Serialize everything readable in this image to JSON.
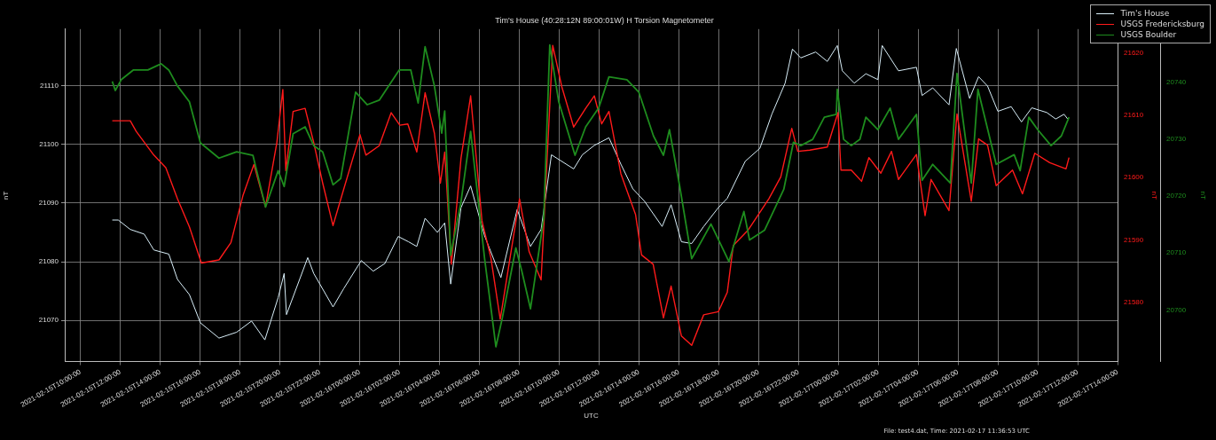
{
  "chart_data": {
    "type": "line",
    "title": "Tim's House (40:28:12N 89:00:01W) H Torsion Magnetometer",
    "xlabel": "UTC",
    "ylabel": "nT",
    "y2label": "nT",
    "y3label": "nT",
    "annotations": [
      "File: test4.dat, Time: 2021-02-17 11:36:53 UTC"
    ],
    "xlim": [
      "2021-02-15T09:13",
      "2021-02-17T14:00"
    ],
    "xticks": [
      {
        "value": "2021-02-15T10:00",
        "label": "2021-02-15T10:00:00"
      },
      {
        "value": "2021-02-15T12:00",
        "label": "2021-02-15T12:00:00"
      },
      {
        "value": "2021-02-15T14:00",
        "label": "2021-02-15T14:00:00"
      },
      {
        "value": "2021-02-15T16:00",
        "label": "2021-02-15T16:00:00"
      },
      {
        "value": "2021-02-15T18:00",
        "label": "2021-02-15T18:00:00"
      },
      {
        "value": "2021-02-15T20:00",
        "label": "2021-02-15T20:00:00"
      },
      {
        "value": "2021-02-15T22:00",
        "label": "2021-02-15T22:00:00"
      },
      {
        "value": "2021-02-16T00:00",
        "label": "2021-02-16T00:00:00"
      },
      {
        "value": "2021-02-16T02:00",
        "label": "2021-02-16T02:00:00"
      },
      {
        "value": "2021-02-16T04:00",
        "label": "2021-02-16T04:00:00"
      },
      {
        "value": "2021-02-16T06:00",
        "label": "2021-02-16T06:00:00"
      },
      {
        "value": "2021-02-16T08:00",
        "label": "2021-02-16T08:00:00"
      },
      {
        "value": "2021-02-16T10:00",
        "label": "2021-02-16T10:00:00"
      },
      {
        "value": "2021-02-16T12:00",
        "label": "2021-02-16T12:00:00"
      },
      {
        "value": "2021-02-16T14:00",
        "label": "2021-02-16T14:00:00"
      },
      {
        "value": "2021-02-16T16:00",
        "label": "2021-02-16T16:00:00"
      },
      {
        "value": "2021-02-16T18:00",
        "label": "2021-02-16T18:00:00"
      },
      {
        "value": "2021-02-16T20:00",
        "label": "2021-02-16T20:00:00"
      },
      {
        "value": "2021-02-16T22:00",
        "label": "2021-02-16T22:00:00"
      },
      {
        "value": "2021-02-17T00:00",
        "label": "2021-02-17T00:00:00"
      },
      {
        "value": "2021-02-17T02:00",
        "label": "2021-02-17T02:00:00"
      },
      {
        "value": "2021-02-17T04:00",
        "label": "2021-02-17T04:00:00"
      },
      {
        "value": "2021-02-17T06:00",
        "label": "2021-02-17T06:00:00"
      },
      {
        "value": "2021-02-17T08:00",
        "label": "2021-02-17T08:00:00"
      },
      {
        "value": "2021-02-17T10:00",
        "label": "2021-02-17T10:00:00"
      },
      {
        "value": "2021-02-17T12:00",
        "label": "2021-02-17T12:00:00"
      },
      {
        "value": "2021-02-17T14:00",
        "label": "2021-02-17T14:00:00"
      }
    ],
    "ylim": [
      21063,
      21119.6
    ],
    "yticks": [
      21070,
      21080,
      21090,
      21100,
      21110
    ],
    "y2lim": [
      21570.5,
      21623.8
    ],
    "y2ticks": [
      21580,
      21590,
      21600,
      21610,
      21620
    ],
    "y3lim": [
      20690.9,
      20749.4
    ],
    "y3ticks": [
      20700,
      20710,
      20720,
      20730,
      20740
    ],
    "grid": true,
    "legend": "top right",
    "series": [
      {
        "name": "Tim's House",
        "color": "#d8eef8",
        "x": [
          "2021-02-15T11:36",
          "2021-02-15T11:54",
          "2021-02-15T12:30",
          "2021-02-15T13:12",
          "2021-02-15T13:41",
          "2021-02-15T14:26",
          "2021-02-15T14:52",
          "2021-02-15T15:28",
          "2021-02-15T16:01",
          "2021-02-15T16:57",
          "2021-02-15T17:50",
          "2021-02-15T18:35",
          "2021-02-15T19:15",
          "2021-02-15T19:55",
          "2021-02-15T20:13",
          "2021-02-15T20:20",
          "2021-02-15T21:24",
          "2021-02-15T21:42",
          "2021-02-15T22:40",
          "2021-02-15T23:12",
          "2021-02-16T00:05",
          "2021-02-16T00:41",
          "2021-02-16T01:16",
          "2021-02-16T01:56",
          "2021-02-16T02:27",
          "2021-02-16T02:52",
          "2021-02-16T03:17",
          "2021-02-16T03:54",
          "2021-02-16T04:16",
          "2021-02-16T04:34",
          "2021-02-16T05:05",
          "2021-02-16T05:34",
          "2021-02-16T06:16",
          "2021-02-16T07:05",
          "2021-02-16T07:54",
          "2021-02-16T08:34",
          "2021-02-16T09:06",
          "2021-02-16T09:37",
          "2021-02-16T10:44",
          "2021-02-16T11:10",
          "2021-02-16T11:46",
          "2021-02-16T12:30",
          "2021-02-16T13:06",
          "2021-02-16T13:42",
          "2021-02-16T14:17",
          "2021-02-16T15:10",
          "2021-02-16T15:37",
          "2021-02-16T16:08",
          "2021-02-16T16:39",
          "2021-02-16T17:15",
          "2021-02-16T17:59",
          "2021-02-16T18:26",
          "2021-02-16T19:20",
          "2021-02-16T20:04",
          "2021-02-16T20:40",
          "2021-02-16T21:20",
          "2021-02-16T21:42",
          "2021-02-16T22:07",
          "2021-02-16T22:52",
          "2021-02-16T23:27",
          "2021-02-16T23:57",
          "2021-02-17T00:12",
          "2021-02-17T00:48",
          "2021-02-17T01:23",
          "2021-02-17T01:59",
          "2021-02-17T02:12",
          "2021-02-17T03:01",
          "2021-02-17T03:55",
          "2021-02-17T04:12",
          "2021-02-17T04:44",
          "2021-02-17T05:33",
          "2021-02-17T05:55",
          "2021-02-17T06:35",
          "2021-02-17T07:02",
          "2021-02-17T07:29",
          "2021-02-17T08:00",
          "2021-02-17T08:40",
          "2021-02-17T09:11",
          "2021-02-17T09:42",
          "2021-02-17T10:27",
          "2021-02-17T10:54",
          "2021-02-17T11:19",
          "2021-02-17T11:30"
        ],
        "values": [
          21087.1,
          21087.1,
          21085.5,
          21084.7,
          21082.0,
          21081.3,
          21077.0,
          21074.4,
          21069.6,
          21067.0,
          21068.0,
          21069.9,
          21066.7,
          21073.9,
          21078.0,
          21071.0,
          21080.7,
          21078.0,
          21072.3,
          21075.4,
          21080.2,
          21078.4,
          21079.7,
          21084.3,
          21083.4,
          21082.6,
          21087.4,
          21085.0,
          21086.6,
          21076.2,
          21089.2,
          21092.9,
          21084.4,
          21077.3,
          21088.9,
          21082.6,
          21085.5,
          21098.2,
          21095.8,
          21098.2,
          21099.8,
          21101.1,
          21096.6,
          21092.4,
          21090.3,
          21086.0,
          21089.7,
          21083.4,
          21083.1,
          21086.0,
          21089.2,
          21090.8,
          21097.1,
          21099.3,
          21105.1,
          21110.4,
          21116.2,
          21114.7,
          21115.7,
          21114.1,
          21116.8,
          21112.5,
          21110.4,
          21112.0,
          21111.0,
          21116.8,
          21112.5,
          21113.1,
          21108.3,
          21109.6,
          21106.7,
          21116.3,
          21107.8,
          21111.5,
          21109.9,
          21105.6,
          21106.4,
          21103.8,
          21106.2,
          21105.4,
          21104.3,
          21105.1,
          21104.3
        ]
      },
      {
        "name": "USGS Fredericksburg",
        "color": "#ff1a1a",
        "axis": "y2",
        "x": [
          "2021-02-15T11:36",
          "2021-02-15T12:30",
          "2021-02-15T12:48",
          "2021-02-15T13:41",
          "2021-02-15T14:17",
          "2021-02-15T14:52",
          "2021-02-15T15:28",
          "2021-02-15T16:04",
          "2021-02-15T16:57",
          "2021-02-15T17:33",
          "2021-02-15T18:09",
          "2021-02-15T18:42",
          "2021-02-15T19:17",
          "2021-02-15T19:51",
          "2021-02-15T20:09",
          "2021-02-15T20:18",
          "2021-02-15T20:40",
          "2021-02-15T21:16",
          "2021-02-15T21:42",
          "2021-02-15T22:09",
          "2021-02-15T22:40",
          "2021-02-15T23:12",
          "2021-02-16T00:01",
          "2021-02-16T00:19",
          "2021-02-16T00:59",
          "2021-02-16T01:35",
          "2021-02-16T02:01",
          "2021-02-16T02:25",
          "2021-02-16T02:52",
          "2021-02-16T03:17",
          "2021-02-16T03:45",
          "2021-02-16T04:03",
          "2021-02-16T04:16",
          "2021-02-16T04:36",
          "2021-02-16T05:05",
          "2021-02-16T05:34",
          "2021-02-16T06:08",
          "2021-02-16T06:35",
          "2021-02-16T07:03",
          "2021-02-16T08:01",
          "2021-02-16T08:30",
          "2021-02-16T09:06",
          "2021-02-16T09:41",
          "2021-02-16T10:08",
          "2021-02-16T10:44",
          "2021-02-16T11:20",
          "2021-02-16T11:46",
          "2021-02-16T12:08",
          "2021-02-16T12:30",
          "2021-02-16T13:06",
          "2021-02-16T13:50",
          "2021-02-16T14:08",
          "2021-02-16T14:43",
          "2021-02-16T15:14",
          "2021-02-16T15:37",
          "2021-02-16T16:08",
          "2021-02-16T16:39",
          "2021-02-16T17:15",
          "2021-02-16T17:59",
          "2021-02-16T18:26",
          "2021-02-16T18:44",
          "2021-02-16T19:29",
          "2021-02-16T20:31",
          "2021-02-16T21:07",
          "2021-02-16T21:40",
          "2021-02-16T21:58",
          "2021-02-16T22:34",
          "2021-02-16T23:27",
          "2021-02-16T23:59",
          "2021-02-17T00:08",
          "2021-02-17T00:39",
          "2021-02-17T01:10",
          "2021-02-17T01:32",
          "2021-02-17T02:08",
          "2021-02-17T02:40",
          "2021-02-17T03:01",
          "2021-02-17T03:55",
          "2021-02-17T04:21",
          "2021-02-17T04:39",
          "2021-02-17T05:06",
          "2021-02-17T05:33",
          "2021-02-17T05:57",
          "2021-02-17T06:40",
          "2021-02-17T07:02",
          "2021-02-17T07:29",
          "2021-02-17T07:55",
          "2021-02-17T08:44",
          "2021-02-17T09:14",
          "2021-02-17T09:51",
          "2021-02-17T10:36",
          "2021-02-17T11:25",
          "2021-02-17T11:34"
        ],
        "values": [
          21609.1,
          21609.1,
          21607.4,
          21603.6,
          21601.6,
          21596.6,
          21592.1,
          21586.3,
          21586.8,
          21589.6,
          21597.1,
          21602.1,
          21595.3,
          21605.6,
          21614.1,
          21601.1,
          21610.6,
          21611.1,
          21605.6,
          21599.1,
          21592.3,
          21598.1,
          21606.9,
          21603.6,
          21605.1,
          21610.4,
          21608.4,
          21608.6,
          21604.1,
          21613.6,
          21607.1,
          21599.1,
          21604.1,
          21586.1,
          21603.1,
          21613.1,
          21593.1,
          21587.1,
          21577.3,
          21596.6,
          21588.1,
          21583.6,
          21621.2,
          21614.6,
          21608.1,
          21611.1,
          21613.1,
          21608.6,
          21610.6,
          21600.6,
          21594.1,
          21587.6,
          21586.1,
          21577.5,
          21582.6,
          21574.6,
          21573.1,
          21578.0,
          21578.5,
          21581.6,
          21589.1,
          21591.6,
          21596.6,
          21600.1,
          21607.9,
          21604.2,
          21604.4,
          21604.9,
          21610.4,
          21601.2,
          21601.2,
          21599.4,
          21603.2,
          21600.7,
          21604.2,
          21599.7,
          21603.7,
          21593.9,
          21599.7,
          21597.2,
          21594.7,
          21610.2,
          21596.2,
          21606.2,
          21605.2,
          21598.7,
          21601.2,
          21597.4,
          21603.9,
          21602.4,
          21601.4,
          21603.2
        ]
      },
      {
        "name": "USGS Boulder",
        "color": "#1e8c1e",
        "axis": "y3",
        "x": [
          "2021-02-15T11:36",
          "2021-02-15T11:45",
          "2021-02-15T12:03",
          "2021-02-15T12:39",
          "2021-02-15T13:23",
          "2021-02-15T14:03",
          "2021-02-15T14:26",
          "2021-02-15T14:52",
          "2021-02-15T15:28",
          "2021-02-15T16:01",
          "2021-02-15T16:57",
          "2021-02-15T17:50",
          "2021-02-15T18:39",
          "2021-02-15T19:17",
          "2021-02-15T19:55",
          "2021-02-15T20:13",
          "2021-02-15T20:40",
          "2021-02-15T21:16",
          "2021-02-15T21:42",
          "2021-02-15T22:09",
          "2021-02-15T22:40",
          "2021-02-15T23:03",
          "2021-02-15T23:48",
          "2021-02-16T00:23",
          "2021-02-16T00:59",
          "2021-02-16T01:59",
          "2021-02-16T02:34",
          "2021-02-16T02:56",
          "2021-02-16T03:17",
          "2021-02-16T03:45",
          "2021-02-16T04:07",
          "2021-02-16T04:16",
          "2021-02-16T04:34",
          "2021-02-16T05:05",
          "2021-02-16T05:34",
          "2021-02-16T06:16",
          "2021-02-16T06:50",
          "2021-02-16T07:09",
          "2021-02-16T07:50",
          "2021-02-16T08:08",
          "2021-02-16T08:34",
          "2021-02-16T09:14",
          "2021-02-16T09:32",
          "2021-02-16T09:59",
          "2021-02-16T10:48",
          "2021-02-16T11:20",
          "2021-02-16T11:59",
          "2021-02-16T12:30",
          "2021-02-16T13:24",
          "2021-02-16T14:00",
          "2021-02-16T14:44",
          "2021-02-16T15:14",
          "2021-02-16T15:32",
          "2021-02-16T16:03",
          "2021-02-16T16:39",
          "2021-02-16T17:37",
          "2021-02-16T18:31",
          "2021-02-16T19:16",
          "2021-02-16T19:33",
          "2021-02-16T20:18",
          "2021-02-16T21:16",
          "2021-02-16T21:45",
          "2021-02-16T22:07",
          "2021-02-16T22:43",
          "2021-02-16T23:18",
          "2021-02-16T23:54",
          "2021-02-16T23:57",
          "2021-02-17T00:16",
          "2021-02-17T00:39",
          "2021-02-17T01:05",
          "2021-02-17T01:23",
          "2021-02-17T01:59",
          "2021-02-17T02:36",
          "2021-02-17T03:01",
          "2021-02-17T03:55",
          "2021-02-17T04:12",
          "2021-02-17T04:44",
          "2021-02-17T05:37",
          "2021-02-17T05:57",
          "2021-02-17T06:40",
          "2021-02-17T07:00",
          "2021-02-17T07:55",
          "2021-02-17T08:49",
          "2021-02-17T09:07",
          "2021-02-17T09:33",
          "2021-02-17T10:00",
          "2021-02-17T10:40",
          "2021-02-17T11:11",
          "2021-02-17T11:34"
        ],
        "values": [
          20740.2,
          20738.6,
          20740.5,
          20742.2,
          20742.2,
          20743.3,
          20742.2,
          20739.4,
          20736.6,
          20729.4,
          20726.7,
          20727.8,
          20727.2,
          20718.1,
          20724.5,
          20721.7,
          20731.0,
          20732.2,
          20728.9,
          20727.8,
          20722.0,
          20723.1,
          20738.3,
          20736.1,
          20736.9,
          20742.2,
          20742.2,
          20736.4,
          20746.3,
          20739.4,
          20731.1,
          20735.0,
          20709.6,
          20719.0,
          20731.4,
          20709.0,
          20693.5,
          20698.5,
          20710.9,
          20706.8,
          20700.2,
          20716.2,
          20746.6,
          20736.6,
          20727.2,
          20732.2,
          20735.5,
          20741.0,
          20740.5,
          20738.3,
          20730.6,
          20727.2,
          20731.7,
          20721.7,
          20709.0,
          20715.1,
          20708.5,
          20717.3,
          20712.3,
          20714.0,
          20721.2,
          20729.5,
          20728.9,
          20730.0,
          20733.9,
          20734.4,
          20738.8,
          20730.0,
          20728.9,
          20730.0,
          20733.9,
          20731.7,
          20735.5,
          20730.0,
          20734.4,
          20722.8,
          20725.6,
          20722.3,
          20741.6,
          20722.3,
          20738.8,
          20725.6,
          20727.3,
          20724.5,
          20733.9,
          20731.7,
          20728.9,
          20730.6,
          20733.9
        ]
      }
    ]
  }
}
